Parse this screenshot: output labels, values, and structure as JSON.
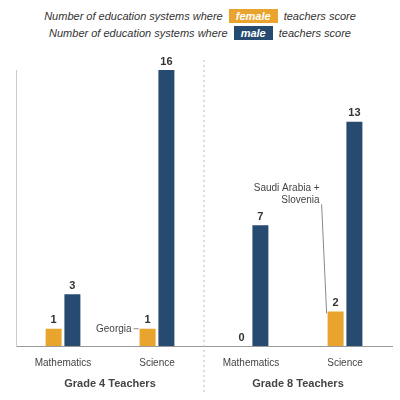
{
  "chart_data": {
    "type": "bar",
    "categories": [
      "Mathematics",
      "Science",
      "Mathematics",
      "Science"
    ],
    "groups": [
      {
        "label": "Grade 4 Teachers",
        "categories": [
          "Mathematics",
          "Science"
        ]
      },
      {
        "label": "Grade 8 Teachers",
        "categories": [
          "Mathematics",
          "Science"
        ]
      }
    ],
    "series": [
      {
        "name": "female",
        "color": "#e8a42c",
        "values": [
          1,
          1,
          0,
          2
        ],
        "notes": [
          null,
          [
            "Georgia"
          ],
          null,
          [
            "Saudi Arabia +",
            "Slovenia"
          ]
        ]
      },
      {
        "name": "male",
        "color": "#264a70",
        "values": [
          3,
          16,
          7,
          13
        ]
      }
    ],
    "legend_text": {
      "before": "Number of education systems where",
      "after": "teachers score"
    },
    "legend": "top",
    "ylim": [
      0,
      16
    ],
    "grid": false,
    "data_labels": true,
    "tick_labels": "x"
  }
}
